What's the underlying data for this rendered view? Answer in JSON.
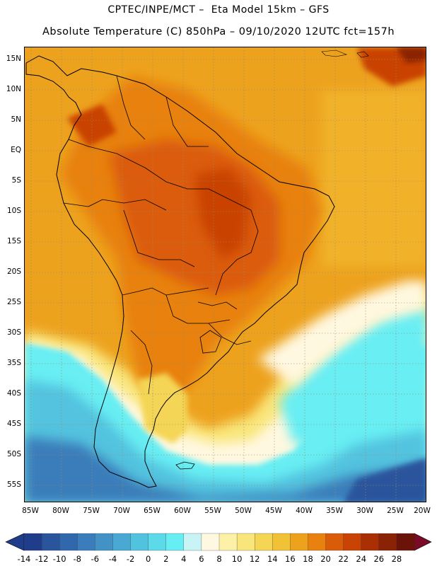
{
  "header": {
    "line1": "CPTEC/INPE/MCT –  Eta Model 15km – GFS",
    "line2": "Absolute Temperature (C) 850hPa – 09/10/2020 12UTC fct=157h"
  },
  "map": {
    "lat_labels": [
      "15N",
      "10N",
      "5N",
      "EQ",
      "5S",
      "10S",
      "15S",
      "20S",
      "25S",
      "30S",
      "35S",
      "40S",
      "45S",
      "50S",
      "55S"
    ],
    "lon_labels": [
      "85W",
      "80W",
      "75W",
      "70W",
      "65W",
      "60W",
      "55W",
      "50W",
      "45W",
      "40W",
      "35W",
      "30W",
      "25W",
      "20W"
    ]
  },
  "colorbar": {
    "labels": [
      "-14",
      "-12",
      "-10",
      "-8",
      "-6",
      "-4",
      "-2",
      "0",
      "2",
      "4",
      "6",
      "8",
      "10",
      "12",
      "14",
      "16",
      "18",
      "20",
      "22",
      "24",
      "26",
      "28"
    ],
    "colors": [
      "#1f3d8a",
      "#2a559c",
      "#3168ad",
      "#3a7dba",
      "#4392c6",
      "#4aa9d3",
      "#52c3df",
      "#5ddaea",
      "#67eef3",
      "#c8f4f6",
      "#fff8e0",
      "#fdf1a8",
      "#f9e67a",
      "#f4d554",
      "#f1c136",
      "#eda21e",
      "#e8810f",
      "#db5c08",
      "#c94305",
      "#aa2f04",
      "#8a2206",
      "#6b1308"
    ],
    "end_low_color": "#1f3d8a",
    "end_high_color": "#7a0a28"
  }
}
